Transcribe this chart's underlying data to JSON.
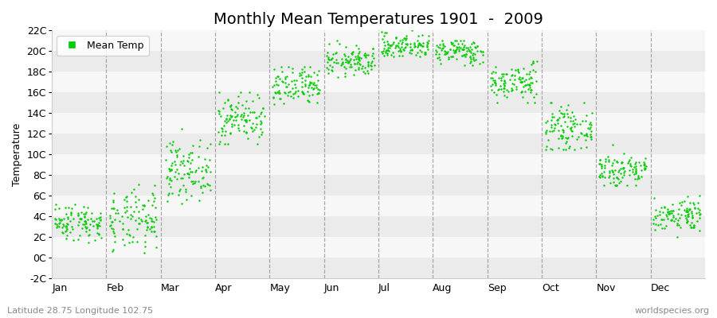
{
  "title": "Monthly Mean Temperatures 1901  -  2009",
  "ylabel": "Temperature",
  "bottom_left_text": "Latitude 28.75 Longitude 102.75",
  "bottom_right_text": "worldspecies.org",
  "legend_label": "Mean Temp",
  "dot_color": "#00CC00",
  "dot_size": 3,
  "ylim": [
    -2,
    22
  ],
  "yticks": [
    -2,
    0,
    2,
    4,
    6,
    8,
    10,
    12,
    14,
    16,
    18,
    20,
    22
  ],
  "ytick_labels": [
    "-2C",
    "0C",
    "2C",
    "4C",
    "6C",
    "8C",
    "10C",
    "12C",
    "14C",
    "16C",
    "18C",
    "20C",
    "22C"
  ],
  "months": [
    "Jan",
    "Feb",
    "Mar",
    "Apr",
    "May",
    "Jun",
    "Jul",
    "Aug",
    "Sep",
    "Oct",
    "Nov",
    "Dec"
  ],
  "monthly_mean": [
    3.5,
    3.5,
    8.5,
    13.5,
    16.5,
    19.0,
    20.5,
    20.0,
    17.0,
    12.5,
    8.5,
    4.2
  ],
  "monthly_std": [
    0.9,
    1.5,
    1.4,
    1.2,
    1.0,
    0.7,
    0.6,
    0.6,
    0.9,
    1.0,
    0.9,
    0.8
  ],
  "monthly_min": [
    1.5,
    -0.5,
    -0.3,
    11.0,
    14.5,
    17.5,
    19.5,
    18.5,
    15.0,
    10.5,
    7.0,
    2.0
  ],
  "monthly_max": [
    6.2,
    7.5,
    12.5,
    16.0,
    18.5,
    21.0,
    22.2,
    21.0,
    19.0,
    15.0,
    13.0,
    6.0
  ],
  "n_years": 109,
  "seed": 42,
  "bg_color": "#ffffff",
  "band_colors": [
    "#ebebeb",
    "#f7f7f7"
  ],
  "dash_color": "#888888",
  "title_fontsize": 14,
  "label_fontsize": 9,
  "tick_fontsize": 9,
  "bottom_text_color": "#888888",
  "spine_color": "#cccccc"
}
